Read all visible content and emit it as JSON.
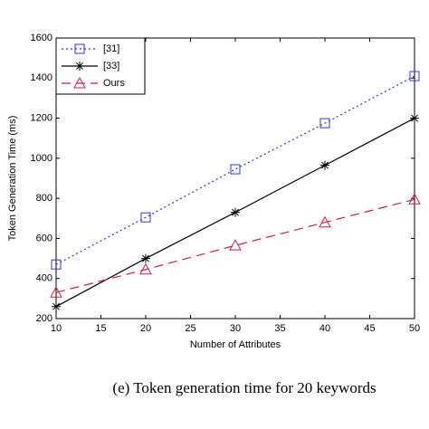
{
  "chart_data": {
    "type": "line",
    "x_label": "Number of Attributes",
    "y_label": "Token Generation Time (ms)",
    "caption": "(e) Token generation time for 20 keywords",
    "x": [
      10,
      20,
      30,
      40,
      50
    ],
    "series": [
      {
        "name": "[31]",
        "color": "#3333dd",
        "dash": "2,3",
        "marker": "square",
        "values": [
          470,
          705,
          945,
          1175,
          1410
        ]
      },
      {
        "name": "[33]",
        "color": "#000000",
        "dash": "none",
        "marker": "asterisk",
        "values": [
          260,
          500,
          730,
          965,
          1200
        ]
      },
      {
        "name": "Ours",
        "color": "#d02040",
        "dash": "10,6",
        "marker": "triangle",
        "values": [
          330,
          445,
          565,
          680,
          795
        ]
      }
    ],
    "xlim": [
      10,
      50
    ],
    "xticks": [
      10,
      15,
      20,
      25,
      30,
      35,
      40,
      45,
      50
    ],
    "ylim": [
      200,
      1600
    ],
    "yticks": [
      200,
      400,
      600,
      800,
      1000,
      1200,
      1400,
      1600
    ],
    "legend": "upper left",
    "grid": false
  }
}
